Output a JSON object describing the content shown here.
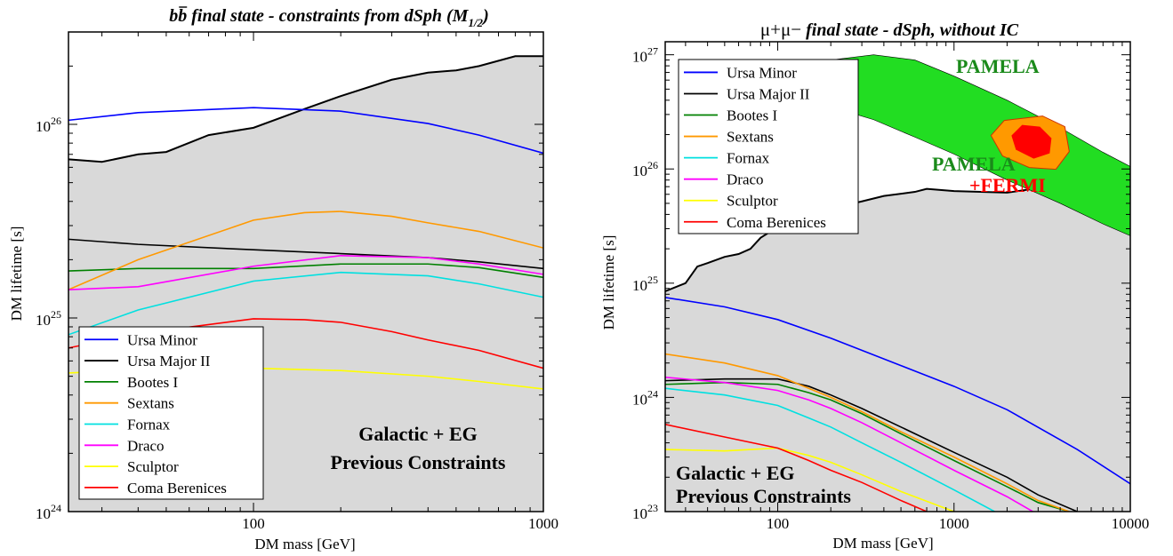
{
  "chart_data": [
    {
      "type": "line",
      "title": {
        "main": "b",
        "sup": "b̄",
        "rest": " final state - constraints from dSph (M",
        "sub": "1/2",
        "close": ")"
      },
      "xlabel": "DM mass [GeV]",
      "ylabel": "DM lifetime [s]",
      "xscale": "log",
      "yscale": "log",
      "xlim": [
        23,
        1000
      ],
      "ylim": [
        1e+24,
        3e+26
      ],
      "xticks": [
        {
          "v": 100,
          "label": "100"
        },
        {
          "v": 1000,
          "label": "1000"
        }
      ],
      "yticks": [
        {
          "v": 1e+24,
          "mant": "10",
          "exp": "24"
        },
        {
          "v": 1e+25,
          "mant": "10",
          "exp": "25"
        },
        {
          "v": 1e+26,
          "mant": "10",
          "exp": "26"
        }
      ],
      "shaded_region": {
        "label": "Galactic + EG Previous Constraints",
        "line1": "Galactic + EG",
        "line2": "Previous Constraints",
        "color": "#d9d9d9",
        "x": [
          23,
          30,
          40,
          50,
          70,
          100,
          150,
          200,
          300,
          400,
          500,
          600,
          800,
          1000
        ],
        "y": [
          6.6e+25,
          6.4e+25,
          7e+25,
          7.2e+25,
          8.8e+25,
          9.6e+25,
          1.2e+26,
          1.4e+26,
          1.7e+26,
          1.85e+26,
          1.9e+26,
          2e+26,
          2.25e+26,
          2.25e+26
        ]
      },
      "legend_position": "bottom-left",
      "series": [
        {
          "name": "Ursa Minor",
          "color": "#0000ff",
          "x": [
            23,
            40,
            100,
            200,
            400,
            600,
            1000
          ],
          "y": [
            1.05e+26,
            1.15e+26,
            1.22e+26,
            1.17e+26,
            1.01e+26,
            8.8e+25,
            7.1e+25
          ]
        },
        {
          "name": "Ursa Major II",
          "color": "#000000",
          "x": [
            23,
            40,
            100,
            200,
            400,
            600,
            1000
          ],
          "y": [
            2.55e+25,
            2.4e+25,
            2.25e+25,
            2.15e+25,
            2.05e+25,
            1.95e+25,
            1.8e+25
          ]
        },
        {
          "name": "Bootes I",
          "color": "#008000",
          "x": [
            23,
            40,
            100,
            200,
            400,
            600,
            1000
          ],
          "y": [
            1.75e+25,
            1.8e+25,
            1.8e+25,
            1.9e+25,
            1.9e+25,
            1.82e+25,
            1.62e+25
          ]
        },
        {
          "name": "Sextans",
          "color": "#ff9900",
          "x": [
            23,
            40,
            100,
            150,
            200,
            300,
            400,
            600,
            1000
          ],
          "y": [
            1.4e+25,
            2e+25,
            3.2e+25,
            3.5e+25,
            3.55e+25,
            3.35e+25,
            3.1e+25,
            2.8e+25,
            2.3e+25
          ]
        },
        {
          "name": "Fornax",
          "color": "#00e0e0",
          "x": [
            23,
            40,
            100,
            200,
            400,
            600,
            1000
          ],
          "y": [
            8.2e+24,
            1.1e+25,
            1.55e+25,
            1.72e+25,
            1.65e+25,
            1.5e+25,
            1.28e+25
          ]
        },
        {
          "name": "Draco",
          "color": "#ff00ff",
          "x": [
            23,
            40,
            100,
            200,
            400,
            600,
            1000
          ],
          "y": [
            1.4e+25,
            1.45e+25,
            1.85e+25,
            2.1e+25,
            2.05e+25,
            1.9e+25,
            1.68e+25
          ]
        },
        {
          "name": "Sculptor",
          "color": "#ffff00",
          "x": [
            23,
            40,
            100,
            200,
            400,
            600,
            1000
          ],
          "y": [
            5.2e+24,
            5.4e+24,
            5.5e+24,
            5.35e+24,
            5e+24,
            4.7e+24,
            4.3e+24
          ]
        },
        {
          "name": "Coma Berenices",
          "color": "#ff0000",
          "x": [
            23,
            40,
            100,
            150,
            200,
            300,
            400,
            600,
            1000
          ],
          "y": [
            7e+24,
            8.3e+24,
            9.9e+24,
            9.8e+24,
            9.5e+24,
            8.5e+24,
            7.7e+24,
            6.8e+24,
            5.5e+24
          ]
        }
      ]
    },
    {
      "type": "line",
      "title": {
        "prefix": "μ+μ−",
        "rest": " final state - dSph, without IC"
      },
      "xlabel": "DM mass [GeV]",
      "ylabel": "DM lifetime [s]",
      "xscale": "log",
      "yscale": "log",
      "xlim": [
        23,
        10000
      ],
      "ylim": [
        1e+23,
        1.3e+27
      ],
      "xticks": [
        {
          "v": 100,
          "label": "100"
        },
        {
          "v": 1000,
          "label": "1000"
        },
        {
          "v": 10000,
          "label": "10000"
        }
      ],
      "yticks": [
        {
          "v": 1e+23,
          "mant": "10",
          "exp": "23"
        },
        {
          "v": 1e+24,
          "mant": "10",
          "exp": "24"
        },
        {
          "v": 1e+25,
          "mant": "10",
          "exp": "25"
        },
        {
          "v": 1e+26,
          "mant": "10",
          "exp": "26"
        },
        {
          "v": 1e+27,
          "mant": "10",
          "exp": "27"
        }
      ],
      "shaded_region": {
        "label": "Galactic + EG Previous Constraints",
        "line1": "Galactic + EG",
        "line2": "Previous Constraints",
        "color": "#d9d9d9",
        "x": [
          23,
          30,
          35,
          40,
          50,
          60,
          70,
          80,
          100,
          150,
          200,
          300,
          400,
          600,
          700,
          1000,
          2000,
          3000,
          5000,
          10000
        ],
        "y": [
          8.5e+24,
          1e+25,
          1.4e+25,
          1.5e+25,
          1.7e+25,
          1.8e+25,
          2e+25,
          2.5e+25,
          3.1e+25,
          4e+25,
          4.5e+25,
          5.2e+25,
          5.8e+25,
          6.3e+25,
          6.7e+25,
          6.4e+25,
          6.2e+25,
          6.8e+25,
          7.2e+25,
          8.5e+25
        ]
      },
      "pamela_region": {
        "label": "PAMELA",
        "color": "#22dd22",
        "upper": {
          "x": [
            140,
            200,
            350,
            600,
            1000,
            2000,
            4000,
            7000,
            10000
          ],
          "y": [
            5e+26,
            9e+26,
            1e+27,
            9e+26,
            6.5e+26,
            4e+26,
            2.3e+26,
            1.4e+26,
            1.05e+26
          ]
        },
        "lower": {
          "x": [
            140,
            200,
            350,
            600,
            1000,
            2000,
            4000,
            7000,
            10000
          ],
          "y": [
            4e+26,
            3.5e+26,
            2.7e+26,
            1.9e+26,
            1.35e+26,
            8e+25,
            5e+25,
            3.3e+25,
            2.6e+25
          ]
        }
      },
      "fermi_region": {
        "label1": "PAMELA",
        "label2": "+FERMI",
        "outer_color": "#ff9900",
        "inner_color": "#ff0000"
      },
      "legend_position": "top-left",
      "series": [
        {
          "name": "Ursa Minor",
          "color": "#0000ff",
          "x": [
            23,
            50,
            100,
            200,
            500,
            1000,
            2000,
            5000,
            10000
          ],
          "y": [
            7.5e+24,
            6.2e+24,
            4.8e+24,
            3.3e+24,
            1.9e+24,
            1.25e+24,
            7.8e+23,
            3.5e+23,
            1.75e+23
          ]
        },
        {
          "name": "Ursa Major II",
          "color": "#000000",
          "x": [
            23,
            50,
            100,
            150,
            200,
            300,
            500,
            1000,
            2000,
            3000,
            5000
          ],
          "y": [
            1.4e+24,
            1.45e+24,
            1.45e+24,
            1.25e+24,
            1.05e+24,
            8e+23,
            5.5e+23,
            3.3e+23,
            2e+23,
            1.4e+23,
            1e+23
          ]
        },
        {
          "name": "Bootes I",
          "color": "#008000",
          "x": [
            23,
            50,
            100,
            150,
            200,
            300,
            500,
            1000,
            2000,
            3000,
            4500
          ],
          "y": [
            1.3e+24,
            1.35e+24,
            1.3e+24,
            1.1e+24,
            9.5e+23,
            7.2e+23,
            4.8e+23,
            2.8e+23,
            1.65e+23,
            1.2e+23,
            1e+23
          ]
        },
        {
          "name": "Sextans",
          "color": "#ff9900",
          "x": [
            23,
            50,
            100,
            150,
            200,
            300,
            500,
            1000,
            2000,
            3000,
            4500
          ],
          "y": [
            2.4e+24,
            2e+24,
            1.55e+24,
            1.2e+24,
            1e+24,
            7.5e+23,
            5e+23,
            3e+23,
            1.75e+23,
            1.25e+23,
            1e+23
          ]
        },
        {
          "name": "Fornax",
          "color": "#00e0e0",
          "x": [
            23,
            50,
            100,
            150,
            200,
            300,
            500,
            1000,
            1700
          ],
          "y": [
            1.2e+24,
            1.05e+24,
            8.5e+23,
            6.6e+23,
            5.5e+23,
            4e+23,
            2.7e+23,
            1.55e+23,
            1e+23
          ]
        },
        {
          "name": "Draco",
          "color": "#ff00ff",
          "x": [
            23,
            50,
            100,
            150,
            200,
            300,
            500,
            1000,
            2000,
            2800
          ],
          "y": [
            1.5e+24,
            1.35e+24,
            1.15e+24,
            9.5e+23,
            8e+23,
            6e+23,
            4e+23,
            2.3e+23,
            1.35e+23,
            1e+23
          ]
        },
        {
          "name": "Sculptor",
          "color": "#ffff00",
          "x": [
            23,
            50,
            100,
            150,
            200,
            300,
            500,
            1000
          ],
          "y": [
            3.5e+23,
            3.4e+23,
            3.6e+23,
            3.1e+23,
            2.7e+23,
            2.1e+23,
            1.5e+23,
            1e+23
          ]
        },
        {
          "name": "Coma Berenices",
          "color": "#ff0000",
          "x": [
            23,
            50,
            100,
            150,
            200,
            300,
            500,
            700
          ],
          "y": [
            5.8e+23,
            4.5e+23,
            3.6e+23,
            2.8e+23,
            2.3e+23,
            1.8e+23,
            1.25e+23,
            1e+23
          ]
        }
      ]
    }
  ]
}
